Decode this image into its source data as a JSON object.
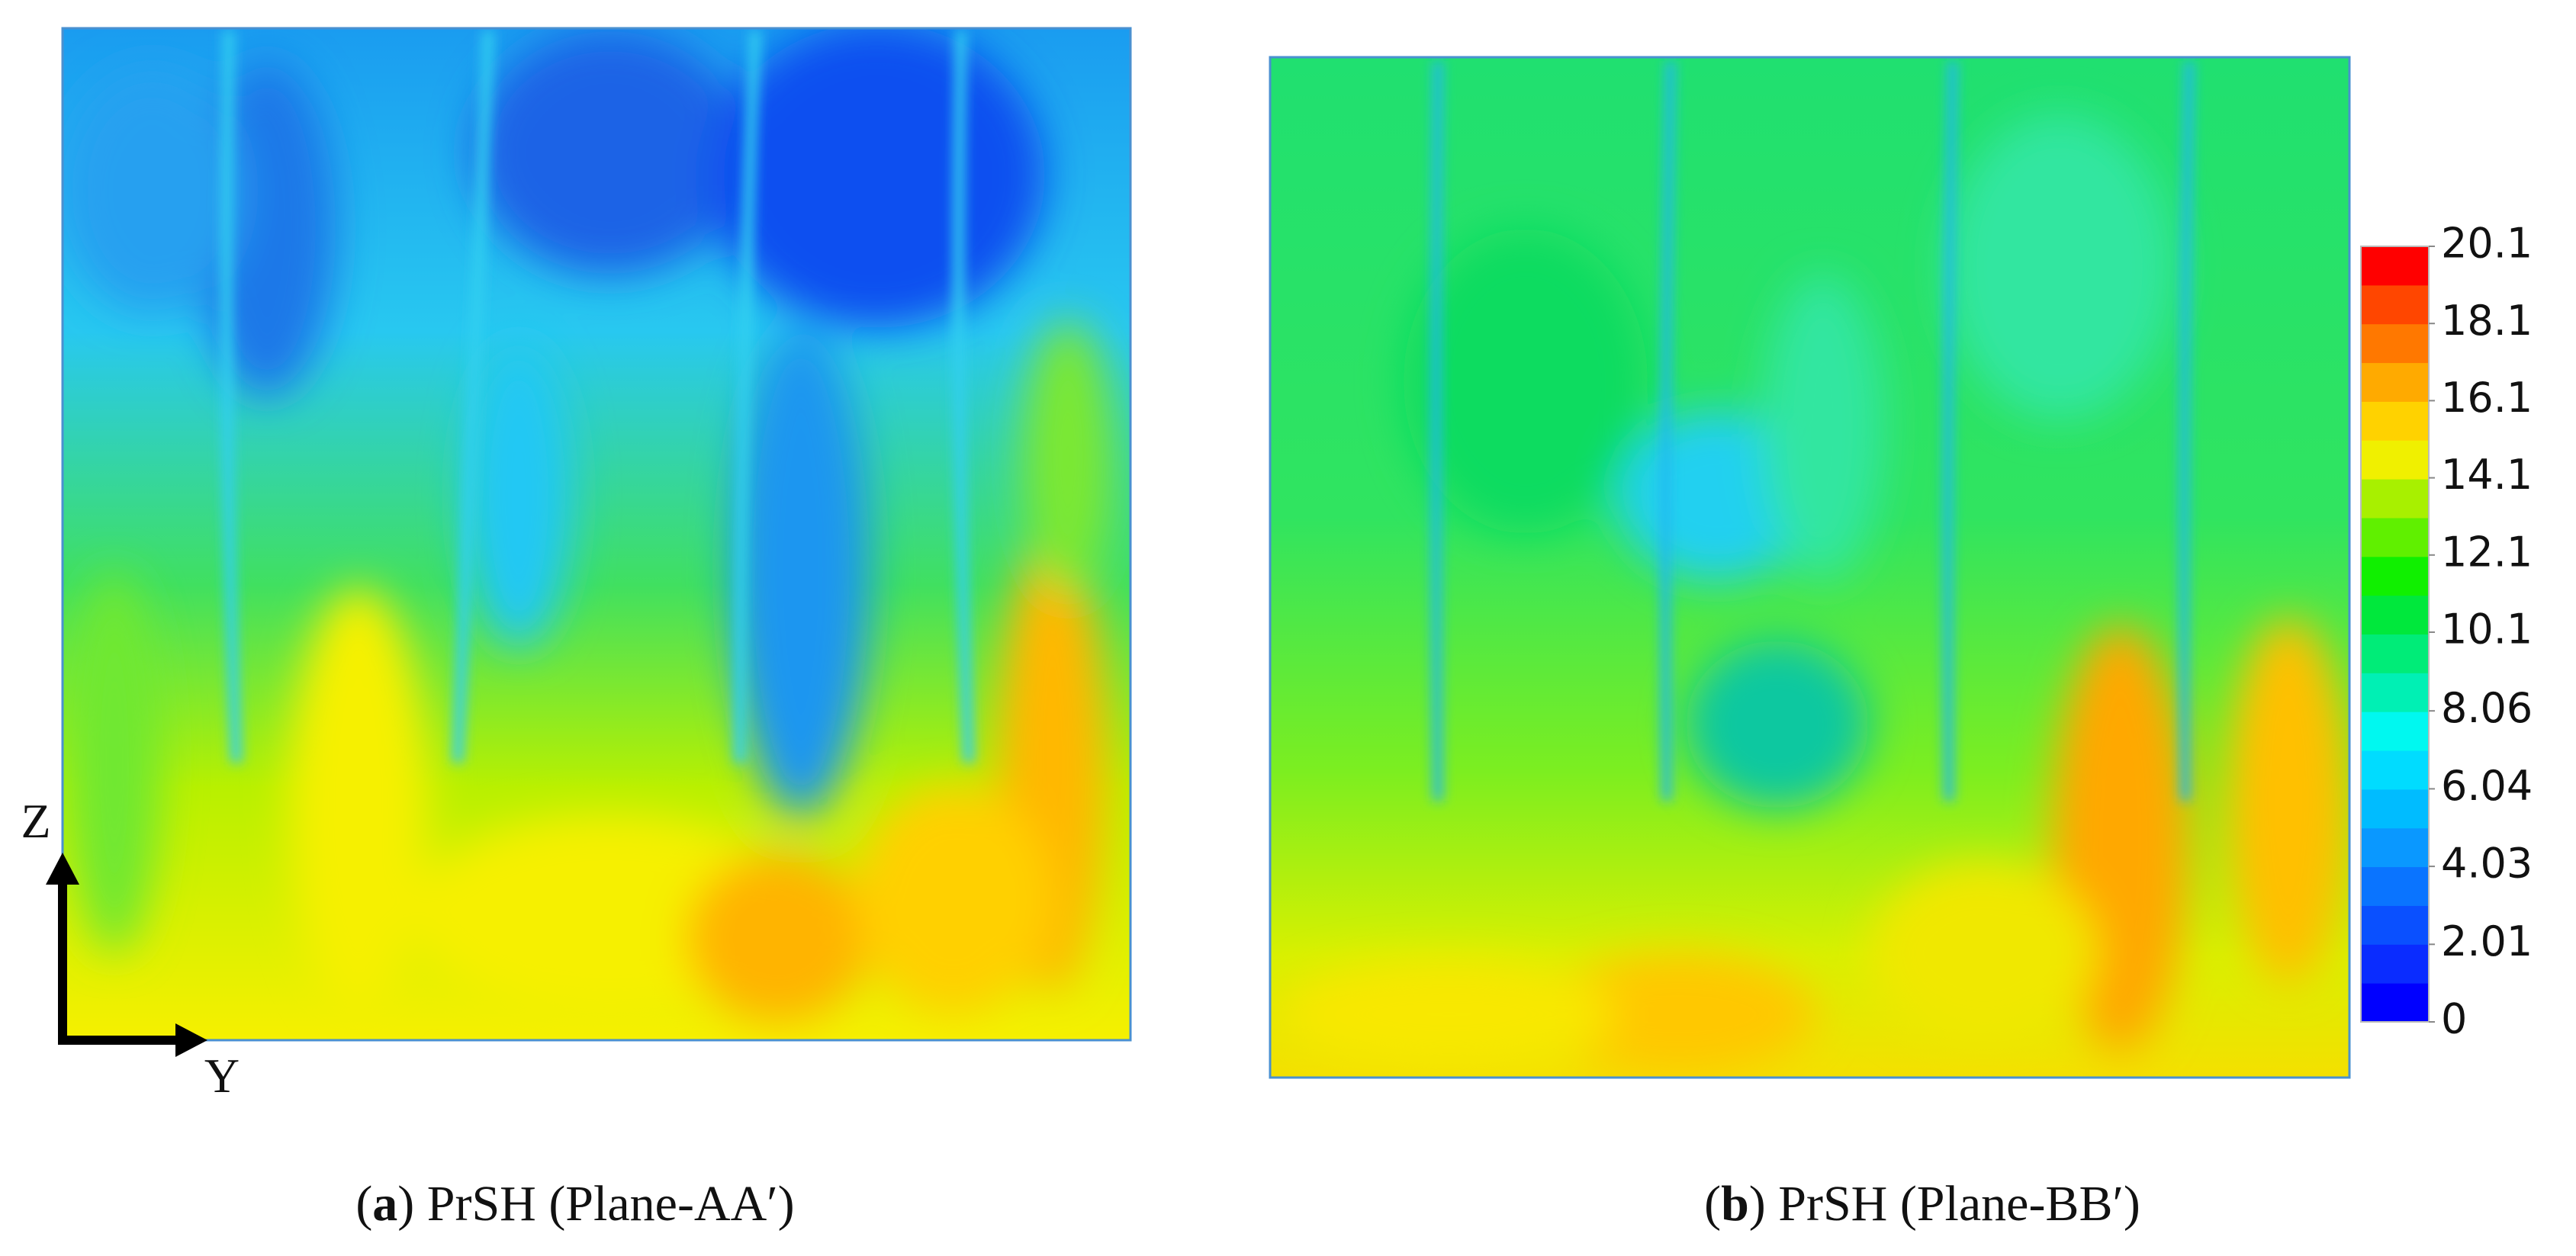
{
  "panels": [
    {
      "caption": {
        "prefix": "(",
        "label": "a",
        "text": ") PrSH (Plane-AA′)"
      }
    },
    {
      "caption": {
        "prefix": "(",
        "label": "b",
        "text": ") PrSH (Plane-BB′)"
      }
    }
  ],
  "axes": {
    "vertical": "Z",
    "horizontal": "Y"
  },
  "colorbar": {
    "lim": [
      0,
      20.1
    ],
    "ticks": [
      0,
      2.01,
      4.03,
      6.04,
      8.06,
      10.1,
      12.1,
      14.1,
      16.1,
      18.1,
      20.1
    ],
    "colors": [
      "#0000ff",
      "#0a2cff",
      "#0a50ff",
      "#0a74ff",
      "#0a98ff",
      "#00bcff",
      "#00dcff",
      "#00f8f0",
      "#00f0b4",
      "#00ec78",
      "#00e83c",
      "#10f000",
      "#60f000",
      "#a8f000",
      "#f0f000",
      "#ffd200",
      "#ffaa00",
      "#ff7800",
      "#ff4600",
      "#ff0000"
    ]
  }
}
